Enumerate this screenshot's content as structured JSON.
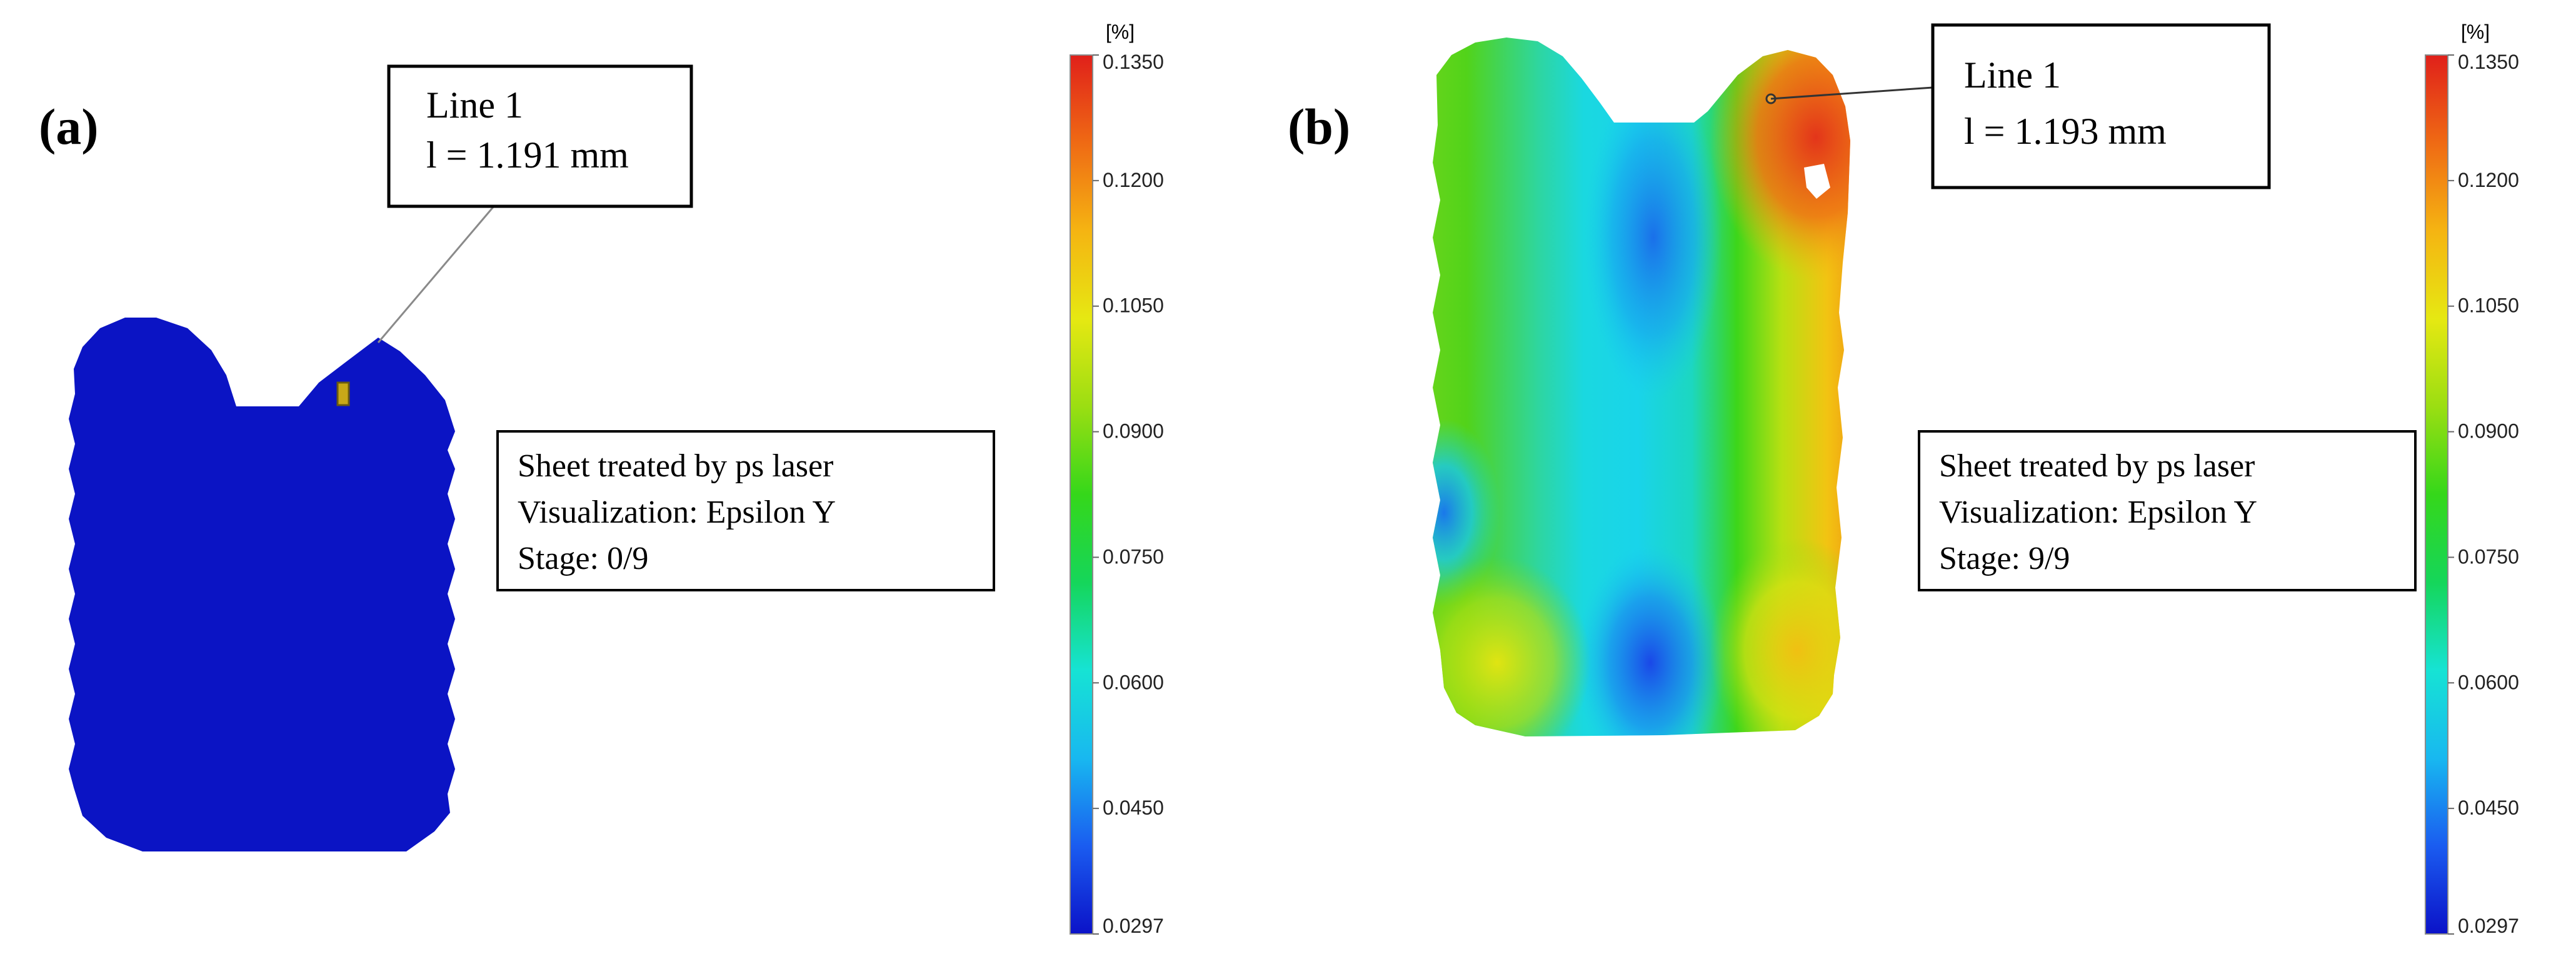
{
  "colors": {
    "contour_stops": [
      "#0b12c8",
      "#1a5cf0",
      "#18b8f0",
      "#16e3d4",
      "#15d65a",
      "#35d71a",
      "#9bde12",
      "#e6e812",
      "#f5b412",
      "#ef6a14",
      "#e0201a"
    ],
    "shape_a_fill": "#0b14c4",
    "marker_a": "#c8a818"
  },
  "panels": [
    {
      "label": "(a)",
      "callout": {
        "line1": "Line 1",
        "line2": "l = 1.191 mm"
      },
      "info": {
        "line1": "Sheet treated by ps laser",
        "line2": "Visualization: Epsilon Y",
        "line3": "Stage: 0/9"
      },
      "colorbar": {
        "unit": "[%]",
        "ticks": [
          "0.1350",
          "0.1200",
          "0.1050",
          "0.0900",
          "0.0750",
          "0.0600",
          "0.0450",
          "0.0297"
        ]
      }
    },
    {
      "label": "(b)",
      "callout": {
        "line1": "Line 1",
        "line2": "l = 1.193 mm"
      },
      "info": {
        "line1": "Sheet treated by ps laser",
        "line2": "Visualization: Epsilon Y",
        "line3": "Stage: 9/9"
      },
      "colorbar": {
        "unit": "[%]",
        "ticks": [
          "0.1350",
          "0.1200",
          "0.1050",
          "0.0900",
          "0.0750",
          "0.0600",
          "0.0450",
          "0.0297"
        ]
      }
    }
  ]
}
